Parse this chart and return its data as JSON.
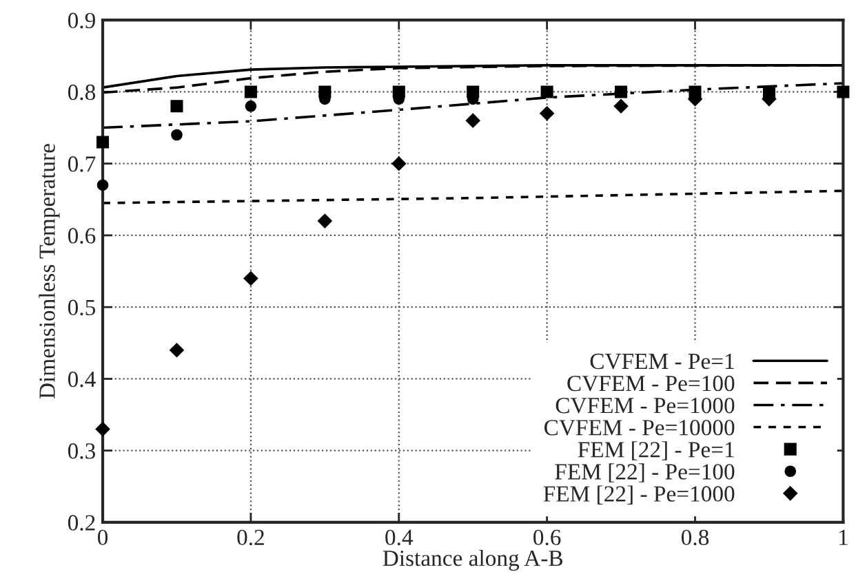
{
  "chart_data": {
    "type": "line",
    "xlabel": "Distance along A-B",
    "ylabel": "Dimensionless Temperature",
    "xlim": [
      0,
      1
    ],
    "ylim": [
      0.2,
      0.9
    ],
    "xticks": [
      0,
      0.2,
      0.4,
      0.6,
      0.8,
      1
    ],
    "yticks": [
      0.2,
      0.3,
      0.4,
      0.5,
      0.6,
      0.7,
      0.8,
      0.9
    ],
    "grid": true,
    "legend": "bottom right",
    "series": [
      {
        "name": "CVFEM - Pe=1",
        "color": "#000000",
        "line_style": "solid",
        "marker": "none",
        "x": [
          0,
          0.1,
          0.2,
          0.3,
          0.4,
          0.6,
          1
        ],
        "values": [
          0.806,
          0.822,
          0.831,
          0.834,
          0.835,
          0.837,
          0.837
        ]
      },
      {
        "name": "CVFEM - Pe=100",
        "color": "#000000",
        "line_style": "dashed",
        "marker": "none",
        "x": [
          0,
          0.1,
          0.2,
          0.3,
          0.4,
          0.6,
          1
        ],
        "values": [
          0.799,
          0.806,
          0.819,
          0.828,
          0.833,
          0.836,
          0.837
        ]
      },
      {
        "name": "CVFEM - Pe=1000",
        "color": "#000000",
        "line_style": "dashdot",
        "marker": "none",
        "x": [
          0,
          0.2,
          0.4,
          0.6,
          0.8,
          1
        ],
        "values": [
          0.75,
          0.759,
          0.775,
          0.792,
          0.803,
          0.812
        ]
      },
      {
        "name": "CVFEM - Pe=10000",
        "color": "#000000",
        "line_style": "dotted",
        "marker": "none",
        "x": [
          0,
          0.5,
          1
        ],
        "values": [
          0.645,
          0.652,
          0.662
        ]
      },
      {
        "name": "FEM [22] - Pe=1",
        "type": "scatter",
        "color": "#000000",
        "marker": "square",
        "x": [
          0,
          0.1,
          0.2,
          0.3,
          0.4,
          0.5,
          0.6,
          0.7,
          0.8,
          0.9,
          1
        ],
        "values": [
          0.73,
          0.78,
          0.8,
          0.8,
          0.8,
          0.8,
          0.8,
          0.8,
          0.8,
          0.8,
          0.8
        ]
      },
      {
        "name": "FEM [22] - Pe=100",
        "type": "scatter",
        "color": "#000000",
        "marker": "circle",
        "x": [
          0,
          0.1,
          0.2,
          0.3,
          0.4,
          0.5
        ],
        "values": [
          0.67,
          0.74,
          0.78,
          0.79,
          0.79,
          0.79
        ]
      },
      {
        "name": "FEM [22] - Pe=1000",
        "type": "scatter",
        "color": "#000000",
        "marker": "diamond",
        "x": [
          0,
          0.1,
          0.2,
          0.3,
          0.4,
          0.5,
          0.6,
          0.7,
          0.8,
          0.9
        ],
        "values": [
          0.33,
          0.44,
          0.54,
          0.62,
          0.7,
          0.76,
          0.77,
          0.78,
          0.79,
          0.79
        ]
      }
    ]
  }
}
